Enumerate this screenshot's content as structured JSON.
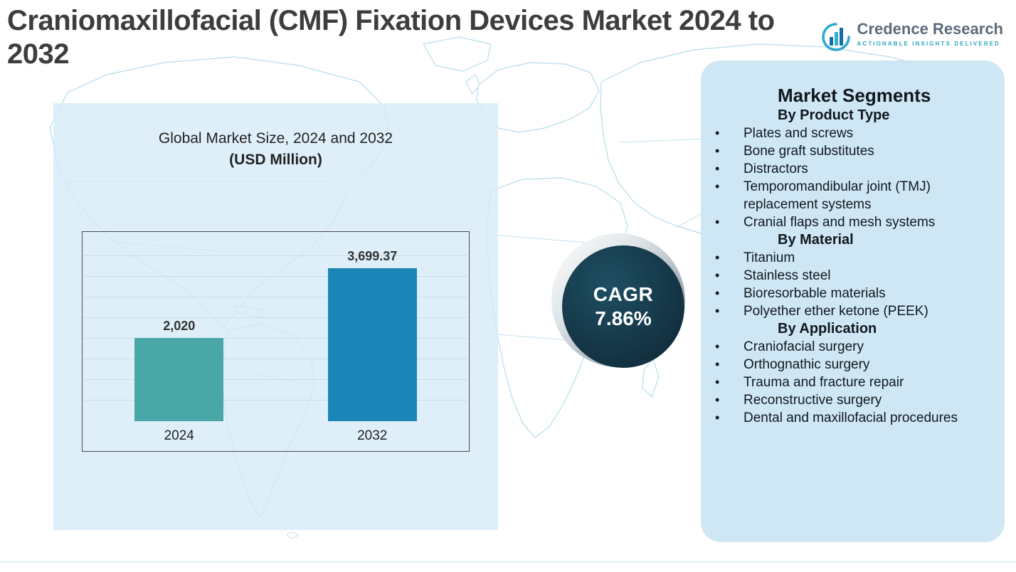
{
  "page": {
    "title": "Craniomaxillofacial (CMF) Fixation Devices Market 2024 to 2032"
  },
  "logo": {
    "name": "Credence Research",
    "tagline": "Actionable Insights Delivered"
  },
  "chart_data": {
    "type": "bar",
    "title": "Global Market Size, 2024 and 2032",
    "subtitle": "(USD Million)",
    "categories": [
      "2024",
      "2032"
    ],
    "values": [
      2020,
      3699.37
    ],
    "value_labels": [
      "2,020",
      "3,699.37"
    ],
    "bar_colors": [
      "#4aa7a7",
      "#1c85b8"
    ],
    "ylabel": "",
    "xlabel": "",
    "ylim": [
      0,
      4000
    ],
    "grid_step": 500,
    "grid": true,
    "legend_position": "none"
  },
  "cagr": {
    "label": "CAGR",
    "value": "7.86%"
  },
  "segments": {
    "title": "Market Segments",
    "groups": [
      {
        "heading": "By Product Type",
        "items": [
          "Plates and screws",
          "Bone graft substitutes",
          "Distractors",
          "Temporomandibular joint (TMJ) replacement systems",
          "Cranial flaps and mesh systems"
        ]
      },
      {
        "heading": "By Material",
        "items": [
          "Titanium",
          "Stainless steel",
          "Bioresorbable materials",
          "Polyether ether ketone (PEEK)"
        ]
      },
      {
        "heading": "By Application",
        "items": [
          "Craniofacial surgery",
          "Orthognathic surgery",
          "Trauma and fracture repair",
          "Reconstructive surgery",
          "Dental and maxillofacial procedures"
        ]
      }
    ],
    "bullet": "•"
  },
  "colors": {
    "accent_teal": "#4aa7a7",
    "accent_blue": "#1c85b8",
    "cagr_circle": "#12303f",
    "panel_blue": "#d5eaf7",
    "title_gray": "#3d3d3d",
    "map_line": "#b7dcec",
    "grid_line": "#c9dcea"
  }
}
